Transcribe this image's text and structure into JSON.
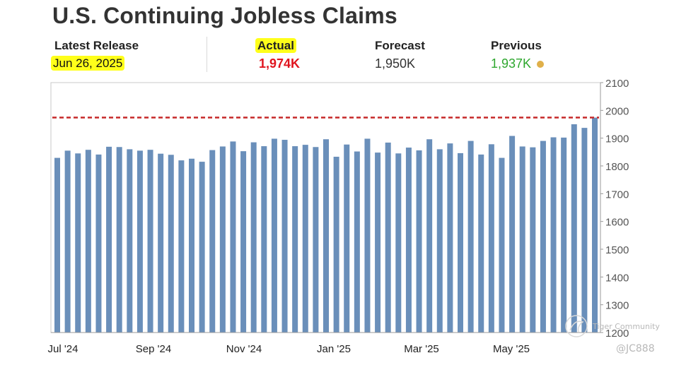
{
  "title": "U.S. Continuing Jobless Claims",
  "stats": {
    "latest_release": {
      "label": "Latest Release",
      "value": "Jun 26, 2025"
    },
    "actual": {
      "label": "Actual",
      "value": "1,974K"
    },
    "forecast": {
      "label": "Forecast",
      "value": "1,950K"
    },
    "previous": {
      "label": "Previous",
      "value": "1,937K"
    }
  },
  "colors": {
    "bar": "#6a8fba",
    "actual": "#e0141e",
    "previous": "#2ea72e",
    "reference_line": "#c62828",
    "highlight": "#ffff1a"
  },
  "watermark": {
    "brand": "Tiger Community",
    "handle": "@JC888"
  },
  "chart_data": {
    "type": "bar",
    "title": "",
    "xlabel": "",
    "ylabel": "",
    "ylim": [
      1200,
      2100
    ],
    "yticks": [
      1200,
      1300,
      1400,
      1500,
      1600,
      1700,
      1800,
      1900,
      2000,
      2100
    ],
    "xtick_labels": [
      "Jul '24",
      "Sep '24",
      "Nov '24",
      "Jan '25",
      "Mar '25",
      "May '25"
    ],
    "reference_line": 1974,
    "values": [
      1829,
      1855,
      1845,
      1858,
      1841,
      1869,
      1868,
      1860,
      1855,
      1858,
      1844,
      1840,
      1820,
      1826,
      1815,
      1857,
      1870,
      1888,
      1853,
      1885,
      1871,
      1898,
      1894,
      1871,
      1876,
      1868,
      1896,
      1833,
      1877,
      1852,
      1898,
      1848,
      1884,
      1845,
      1866,
      1856,
      1896,
      1860,
      1881,
      1846,
      1890,
      1841,
      1878,
      1829,
      1908,
      1870,
      1867,
      1890,
      1903,
      1902,
      1950,
      1937,
      1974
    ]
  }
}
